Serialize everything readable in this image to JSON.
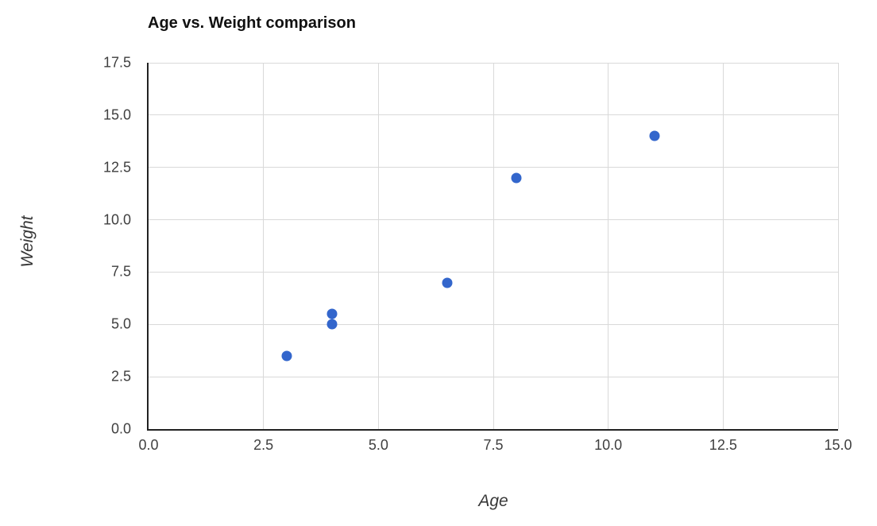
{
  "chart_data": {
    "type": "scatter",
    "title": "Age vs. Weight comparison",
    "xlabel": "Age",
    "ylabel": "Weight",
    "xlim": [
      0,
      15
    ],
    "ylim": [
      0,
      17.5
    ],
    "xticks": [
      "0.0",
      "2.5",
      "5.0",
      "7.5",
      "10.0",
      "12.5",
      "15.0"
    ],
    "yticks": [
      "0.0",
      "2.5",
      "5.0",
      "7.5",
      "10.0",
      "12.5",
      "15.0",
      "17.5"
    ],
    "grid": true,
    "legend": false,
    "point_color": "#3366cc",
    "grid_color": "#d9d9d9",
    "spine_color": "#222222",
    "points": [
      {
        "x": 3,
        "y": 3.5
      },
      {
        "x": 4,
        "y": 5
      },
      {
        "x": 4,
        "y": 5.5
      },
      {
        "x": 6.5,
        "y": 7
      },
      {
        "x": 8,
        "y": 12
      },
      {
        "x": 11,
        "y": 14
      }
    ]
  }
}
